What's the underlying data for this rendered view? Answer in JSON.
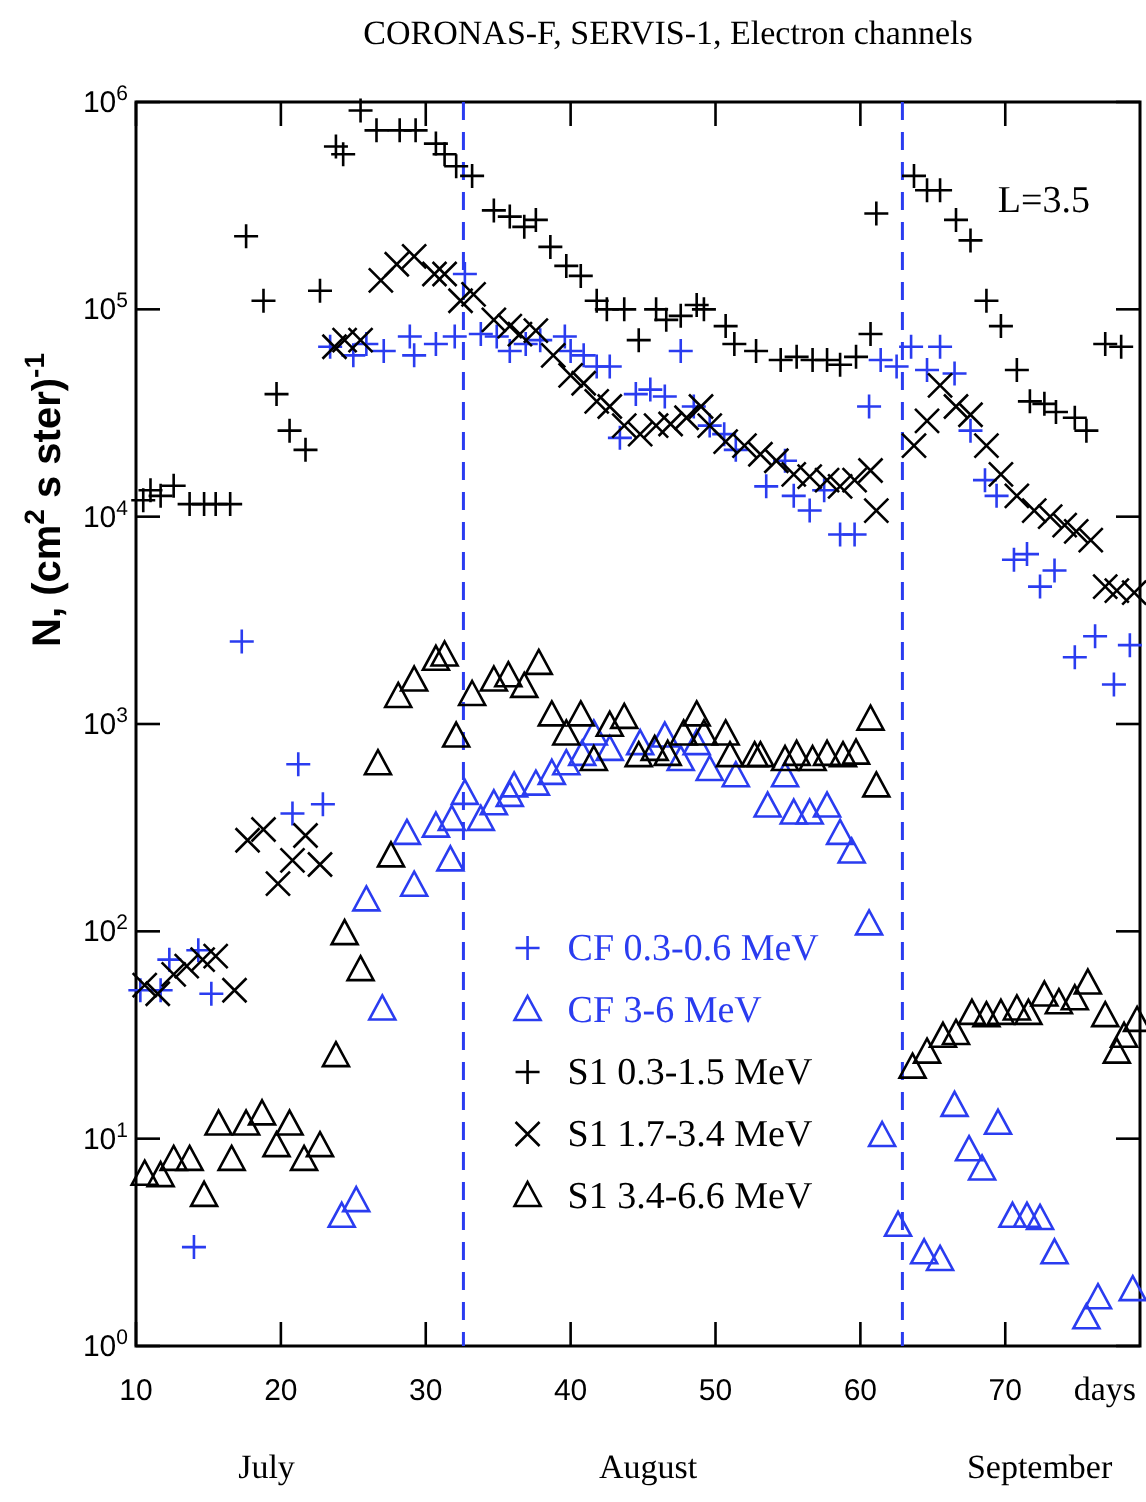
{
  "chart_data": {
    "type": "scatter",
    "title": "CORONAS-F, SERVIS-1,  Electron channels",
    "ylabel": "N, (cm$^{2}$ s ster)$^{-1}$",
    "xlabel": "days",
    "xlim": [
      10,
      79.3
    ],
    "xticks": [
      10,
      20,
      30,
      40,
      50,
      60,
      70
    ],
    "ylim": [
      1,
      1000000
    ],
    "yticks": [
      {
        "value": 1,
        "label": "10$^{0}$"
      },
      {
        "value": 10,
        "label": "10$^{1}$"
      },
      {
        "value": 100,
        "label": "10$^{2}$"
      },
      {
        "value": 1000,
        "label": "10$^{3}$"
      },
      {
        "value": 10000,
        "label": "10$^{4}$"
      },
      {
        "value": 100000,
        "label": "10$^{5}$"
      },
      {
        "value": 1000000,
        "label": "10$^{6}$"
      }
    ],
    "log": "y",
    "grid": false,
    "legend": "bottom",
    "ref_lines": [
      {
        "axis": "x",
        "value": 32.6,
        "color": "#2a3cf0",
        "line_style": "dashed"
      },
      {
        "axis": "x",
        "value": 62.9,
        "color": "#2a3cf0",
        "line_style": "dashed"
      }
    ],
    "annotations": [
      "L=3.5",
      "July",
      "August",
      "September"
    ],
    "series": [
      {
        "name": "CF 0.3-0.6 MeV",
        "color": "#2a3cf0",
        "marker": "plus",
        "x": [
          10.3,
          11.7,
          12.3,
          14.0,
          14.3,
          15.2,
          17.3,
          20.8,
          21.2,
          22.9,
          23.4,
          25.0,
          25.9,
          27.1,
          28.9,
          29.2,
          30.7,
          32.0,
          32.7,
          33.8,
          34.9,
          35.8,
          36.9,
          37.9,
          39.6,
          40.0,
          40.9,
          41.8,
          42.7,
          43.4,
          44.5,
          45.5,
          46.5,
          47.6,
          48.5,
          49.6,
          50.6,
          51.4,
          53.5,
          54.8,
          55.4,
          56.5,
          57.5,
          58.6,
          59.6,
          60.6,
          61.4,
          62.5,
          63.5,
          64.6,
          65.5,
          66.5,
          67.6,
          68.6,
          69.4,
          70.6,
          71.5,
          72.4,
          73.4,
          74.8,
          76.2,
          77.5,
          78.6
        ],
        "values": [
          52,
          52,
          73,
          3.0,
          81,
          50,
          2500,
          370,
          640,
          410,
          66000,
          60000,
          68000,
          63000,
          74000,
          60000,
          68000,
          74000,
          148000,
          76000,
          74000,
          63000,
          68000,
          71000,
          74000,
          63000,
          60000,
          53000,
          53000,
          24000,
          39000,
          41000,
          38000,
          63000,
          34000,
          27500,
          25000,
          21000,
          14000,
          18600,
          12600,
          10700,
          13400,
          8200,
          8200,
          34000,
          57000,
          53000,
          66000,
          51000,
          66000,
          49000,
          26000,
          15000,
          12600,
          6200,
          6600,
          4600,
          5500,
          2100,
          2650,
          1550,
          2400
        ]
      },
      {
        "name": "CF 3-6 MeV",
        "color": "#2a3cf0",
        "marker": "triangle",
        "x": [
          24.2,
          25.2,
          25.9,
          27.0,
          28.7,
          29.2,
          30.7,
          31.7,
          31.8,
          32.7,
          33.8,
          34.7,
          35.8,
          36.1,
          37.6,
          38.7,
          39.7,
          40.8,
          41.6,
          42.7,
          44.8,
          46.5,
          47.6,
          48.7,
          49.6,
          51.4,
          53.6,
          54.8,
          55.4,
          56.5,
          57.7,
          58.6,
          59.4,
          60.6,
          61.5,
          62.6,
          64.4,
          65.5,
          66.5,
          67.5,
          68.4,
          69.5,
          70.5,
          71.5,
          72.4,
          73.4,
          75.6,
          76.4,
          78.8
        ],
        "values": [
          4.2,
          5.0,
          141,
          42,
          295,
          166,
          320,
          220,
          345,
          460,
          345,
          410,
          450,
          500,
          510,
          575,
          640,
          710,
          890,
          750,
          800,
          870,
          670,
          800,
          600,
          560,
          400,
          560,
          370,
          370,
          400,
          295,
          240,
          108,
          10.3,
          3.8,
          2.8,
          2.6,
          14.4,
          8.8,
          7.1,
          11.8,
          4.2,
          4.2,
          4.1,
          2.8,
          1.36,
          1.7,
          1.86
        ]
      },
      {
        "name": "S1 0.3-1.5 MeV",
        "color": "#000000",
        "marker": "plus",
        "x": [
          10.5,
          11.0,
          11.7,
          12.6,
          13.7,
          14.7,
          15.5,
          16.5,
          17.6,
          18.8,
          19.7,
          20.6,
          21.7,
          22.7,
          23.8,
          24.3,
          25.5,
          26.6,
          28.2,
          29.3,
          30.7,
          31.3,
          32.1,
          33.2,
          34.7,
          35.8,
          36.8,
          37.6,
          38.6,
          39.7,
          40.7,
          41.8,
          42.5,
          43.7,
          44.7,
          45.9,
          46.6,
          47.6,
          48.7,
          49.2,
          50.7,
          51.3,
          52.8,
          54.5,
          55.6,
          56.7,
          57.7,
          58.6,
          59.7,
          60.7,
          61.1,
          63.7,
          64.6,
          65.5,
          66.6,
          67.6,
          68.7,
          69.7,
          70.8,
          71.7,
          72.7,
          73.5,
          74.8,
          75.6,
          76.9,
          78.0
        ],
        "values": [
          12000,
          13400,
          12600,
          14100,
          11500,
          11500,
          11500,
          11500,
          225000,
          110000,
          39000,
          26000,
          21000,
          123000,
          610000,
          560000,
          910000,
          730000,
          730000,
          730000,
          630000,
          560000,
          490000,
          440000,
          300000,
          280000,
          250000,
          270000,
          200000,
          162000,
          145000,
          110000,
          100000,
          100000,
          71000,
          100000,
          89000,
          93000,
          105000,
          100000,
          83000,
          68000,
          63000,
          57000,
          59000,
          57000,
          57000,
          54000,
          59000,
          76000,
          290000,
          440000,
          375000,
          375000,
          270000,
          215000,
          110000,
          83000,
          51000,
          36000,
          35000,
          32000,
          30000,
          26000,
          68000,
          66000
        ]
      },
      {
        "name": "S1 1.7-3.4 MeV",
        "color": "#000000",
        "marker": "cross",
        "x": [
          10.6,
          11.5,
          12.6,
          13.5,
          14.6,
          15.5,
          16.8,
          17.7,
          18.8,
          19.8,
          20.8,
          21.7,
          22.7,
          23.7,
          24.4,
          25.5,
          26.9,
          28.0,
          29.2,
          30.6,
          31.3,
          32.4,
          33.3,
          34.7,
          35.8,
          36.5,
          37.6,
          38.8,
          40.0,
          40.9,
          41.8,
          42.7,
          43.7,
          44.8,
          45.9,
          46.9,
          48.0,
          49.0,
          49.6,
          50.7,
          52.0,
          53.1,
          54.2,
          55.4,
          56.5,
          57.7,
          58.6,
          59.6,
          60.7,
          61.1,
          63.7,
          64.6,
          65.5,
          66.6,
          67.6,
          68.7,
          69.7,
          70.8,
          72.0,
          73.1,
          74.1,
          74.9,
          75.9,
          76.9,
          77.7,
          78.9
        ],
        "values": [
          55,
          50,
          62,
          68,
          73,
          76,
          52,
          275,
          310,
          170,
          220,
          290,
          210,
          66000,
          71000,
          71000,
          138000,
          165000,
          180000,
          148000,
          148000,
          110000,
          118000,
          89000,
          83000,
          76000,
          79000,
          60000,
          48000,
          44000,
          36000,
          34000,
          27500,
          25000,
          27500,
          28000,
          30000,
          34000,
          27500,
          23000,
          22000,
          20000,
          18600,
          16000,
          15600,
          15000,
          14000,
          15000,
          16700,
          10700,
          22000,
          29000,
          43000,
          34000,
          31000,
          22000,
          16000,
          12600,
          10700,
          10000,
          9100,
          8500,
          7700,
          4600,
          4400,
          4300
        ]
      },
      {
        "name": "S1 3.4-6.6 MeV",
        "color": "#000000",
        "marker": "triangle",
        "x": [
          10.6,
          11.7,
          12.6,
          13.7,
          14.7,
          15.7,
          16.6,
          17.6,
          18.7,
          19.7,
          20.6,
          21.6,
          22.7,
          23.8,
          24.4,
          25.5,
          26.7,
          27.6,
          28.1,
          29.2,
          30.7,
          31.3,
          32.1,
          33.2,
          34.7,
          35.7,
          36.8,
          37.8,
          38.7,
          39.7,
          40.7,
          41.6,
          42.7,
          43.7,
          44.7,
          45.8,
          46.7,
          47.8,
          48.7,
          49.2,
          50.7,
          51.0,
          52.7,
          53.1,
          54.8,
          55.6,
          56.7,
          57.7,
          58.8,
          59.7,
          60.7,
          61.1,
          63.6,
          64.6,
          65.7,
          66.6,
          67.7,
          68.7,
          69.7,
          70.8,
          71.6,
          72.7,
          73.7,
          74.8,
          75.7,
          76.9,
          77.7,
          78.2,
          79.1
        ],
        "values": [
          6.7,
          6.6,
          7.9,
          7.9,
          5.3,
          11.7,
          7.9,
          11.7,
          13.1,
          9.2,
          11.7,
          7.9,
          9.2,
          25,
          97,
          65,
          640,
          230,
          1350,
          1620,
          2040,
          2140,
          870,
          1380,
          1620,
          1700,
          1510,
          1950,
          1100,
          890,
          1100,
          670,
          980,
          1070,
          700,
          750,
          710,
          890,
          1100,
          890,
          890,
          700,
          700,
          700,
          670,
          710,
          670,
          710,
          700,
          720,
          1050,
          500,
          22,
          26,
          31,
          32,
          40,
          39,
          40,
          42,
          40,
          49,
          45,
          47,
          56,
          39,
          26,
          31,
          37
        ]
      }
    ]
  }
}
